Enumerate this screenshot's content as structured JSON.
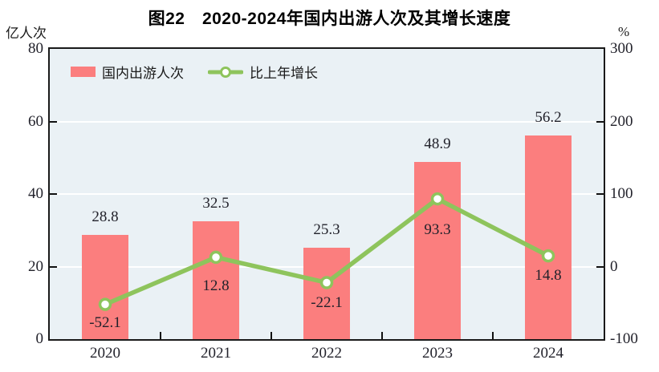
{
  "title": "图22　2020-2024年国内出游人次及其增长速度",
  "left_axis_unit": "亿人次",
  "right_axis_unit": "%",
  "legend": {
    "bar_label": "国内出游人次",
    "line_label": "比上年增长"
  },
  "chart_data": {
    "type": "combo",
    "categories": [
      "2020",
      "2021",
      "2022",
      "2023",
      "2024"
    ],
    "series": [
      {
        "name": "国内出游人次",
        "type": "bar",
        "axis": "left",
        "values": [
          28.8,
          32.5,
          25.3,
          48.9,
          56.2
        ],
        "color": "#fb7e7e"
      },
      {
        "name": "比上年增长",
        "type": "line",
        "axis": "right",
        "values": [
          -52.1,
          12.8,
          -22.1,
          93.3,
          14.8
        ],
        "color": "#8ec45c",
        "marker": "circle-white-fill-green-ring"
      }
    ],
    "left_axis": {
      "label": "亿人次",
      "min": 0,
      "max": 80,
      "ticks": [
        0,
        20,
        40,
        60,
        80
      ]
    },
    "right_axis": {
      "label": "%",
      "min": -100,
      "max": 300,
      "ticks": [
        -100,
        0,
        100,
        200,
        300
      ]
    },
    "grid": "horizontal",
    "grid_color": "#ffffff",
    "plot_bg": "#eaf1f5",
    "border_color": "#1a1a1a",
    "legend_position": "top-left-inside",
    "title": "图22　2020-2024年国内出游人次及其增长速度"
  }
}
